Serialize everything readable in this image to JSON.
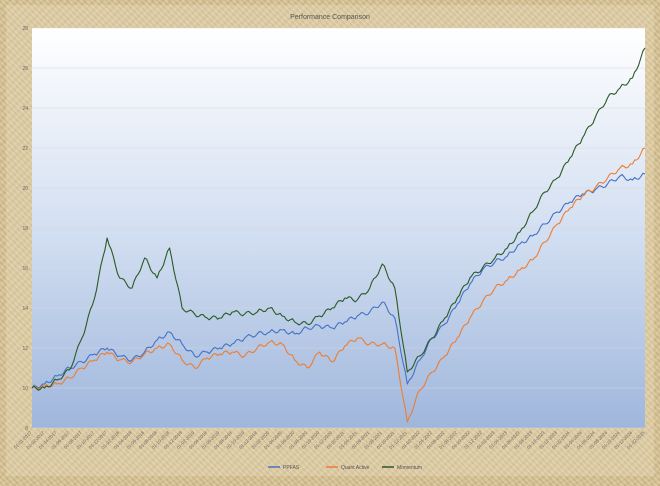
{
  "chart_data": {
    "type": "line",
    "title": "Performance Comparison",
    "xlabel": "",
    "ylabel": "",
    "ylim": [
      8,
      28
    ],
    "yticks": [
      8,
      10,
      12,
      14,
      16,
      18,
      20,
      22,
      24,
      26,
      28
    ],
    "grid": "horizontal",
    "legend_position": "bottom",
    "x_tick_labels": [
      "01-01-2017",
      "01-02-2017",
      "01-04-2017",
      "01-06-2017",
      "01-08-2017",
      "01-10-2017",
      "01-12-2017",
      "01-02-2018",
      "01-04-2018",
      "01-06-2018",
      "01-08-2018",
      "01-10-2018",
      "01-12-2018",
      "01-02-2019",
      "01-04-2019",
      "01-06-2019",
      "01-08-2019",
      "01-10-2019",
      "01-12-2019",
      "01-02-2020",
      "01-04-2020",
      "01-06-2020",
      "01-08-2020",
      "01-10-2020",
      "01-12-2020",
      "01-02-2021",
      "01-04-2021",
      "01-06-2021",
      "01-08-2021",
      "01-10-2021",
      "01-12-2021",
      "01-02-2022",
      "01-04-2022",
      "01-06-2022",
      "01-08-2022",
      "01-10-2022",
      "01-12-2022",
      "01-02-2023",
      "01-04-2023",
      "01-06-2023",
      "01-08-2023",
      "01-10-2023",
      "01-12-2023",
      "01-02-2024",
      "01-04-2024",
      "01-06-2024",
      "01-08-2024",
      "01-10-2024",
      "01-12-2024",
      "01-02-2025"
    ],
    "x": [
      0,
      1,
      2,
      3,
      4,
      5,
      6,
      7,
      8,
      9,
      10,
      11,
      12,
      13,
      14,
      15,
      16,
      17,
      18,
      19,
      20,
      21,
      22,
      23,
      24,
      25,
      26,
      27,
      28,
      29,
      30,
      31,
      32,
      33,
      34,
      35,
      36,
      37,
      38,
      39,
      40,
      41,
      42,
      43,
      44,
      45,
      46,
      47,
      48,
      49
    ],
    "series": [
      {
        "name": "PPFAS",
        "color": "#4472c4",
        "values": [
          10.0,
          10.2,
          10.6,
          11.0,
          11.3,
          11.7,
          12.0,
          11.6,
          11.4,
          11.8,
          12.4,
          12.8,
          12.2,
          11.6,
          11.8,
          12.0,
          12.2,
          12.5,
          12.7,
          12.8,
          12.9,
          12.7,
          13.0,
          13.1,
          13.0,
          13.3,
          13.6,
          13.8,
          14.3,
          13.5,
          10.2,
          11.4,
          12.5,
          13.2,
          14.2,
          15.2,
          15.9,
          16.3,
          16.6,
          17.2,
          17.6,
          18.2,
          18.8,
          19.3,
          19.7,
          19.9,
          20.2,
          20.6,
          20.4,
          20.7
        ]
      },
      {
        "name": "Quant Active",
        "color": "#ed7d31",
        "values": [
          10.0,
          10.1,
          10.2,
          10.5,
          11.0,
          11.4,
          11.8,
          11.4,
          11.3,
          11.7,
          12.0,
          12.2,
          11.4,
          11.0,
          11.5,
          11.7,
          11.8,
          11.6,
          12.0,
          12.3,
          12.2,
          11.4,
          11.0,
          11.8,
          11.3,
          12.1,
          12.5,
          12.2,
          12.2,
          12.0,
          8.3,
          9.9,
          10.8,
          11.6,
          12.5,
          13.5,
          14.3,
          15.0,
          15.4,
          15.9,
          16.4,
          17.3,
          18.2,
          19.0,
          19.6,
          20.0,
          20.5,
          21.0,
          21.2,
          22.0
        ]
      },
      {
        "name": "Momentum",
        "color": "#2a5a24",
        "values": [
          10.0,
          10.0,
          10.4,
          10.9,
          12.5,
          14.5,
          17.5,
          15.5,
          15.0,
          16.5,
          15.5,
          17.0,
          14.0,
          13.7,
          13.5,
          13.5,
          13.8,
          13.7,
          13.8,
          14.0,
          13.6,
          13.3,
          13.2,
          13.6,
          14.0,
          14.5,
          14.4,
          15.0,
          16.2,
          15.0,
          10.8,
          11.6,
          12.5,
          13.5,
          14.5,
          15.5,
          16.0,
          16.5,
          17.0,
          17.8,
          18.8,
          19.8,
          20.5,
          21.5,
          22.5,
          23.5,
          24.5,
          25.0,
          25.5,
          27.0
        ]
      }
    ]
  }
}
